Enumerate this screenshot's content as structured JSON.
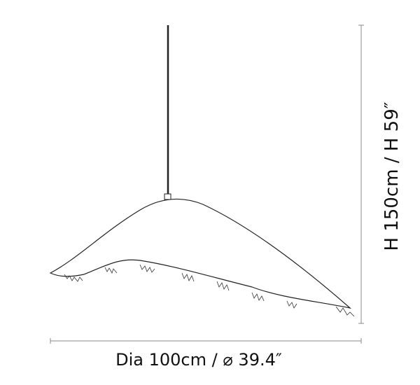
{
  "dimensions": {
    "height": "H 150cm / H 59″",
    "width": "Dia 100cm / ⌀ 39.4″"
  }
}
